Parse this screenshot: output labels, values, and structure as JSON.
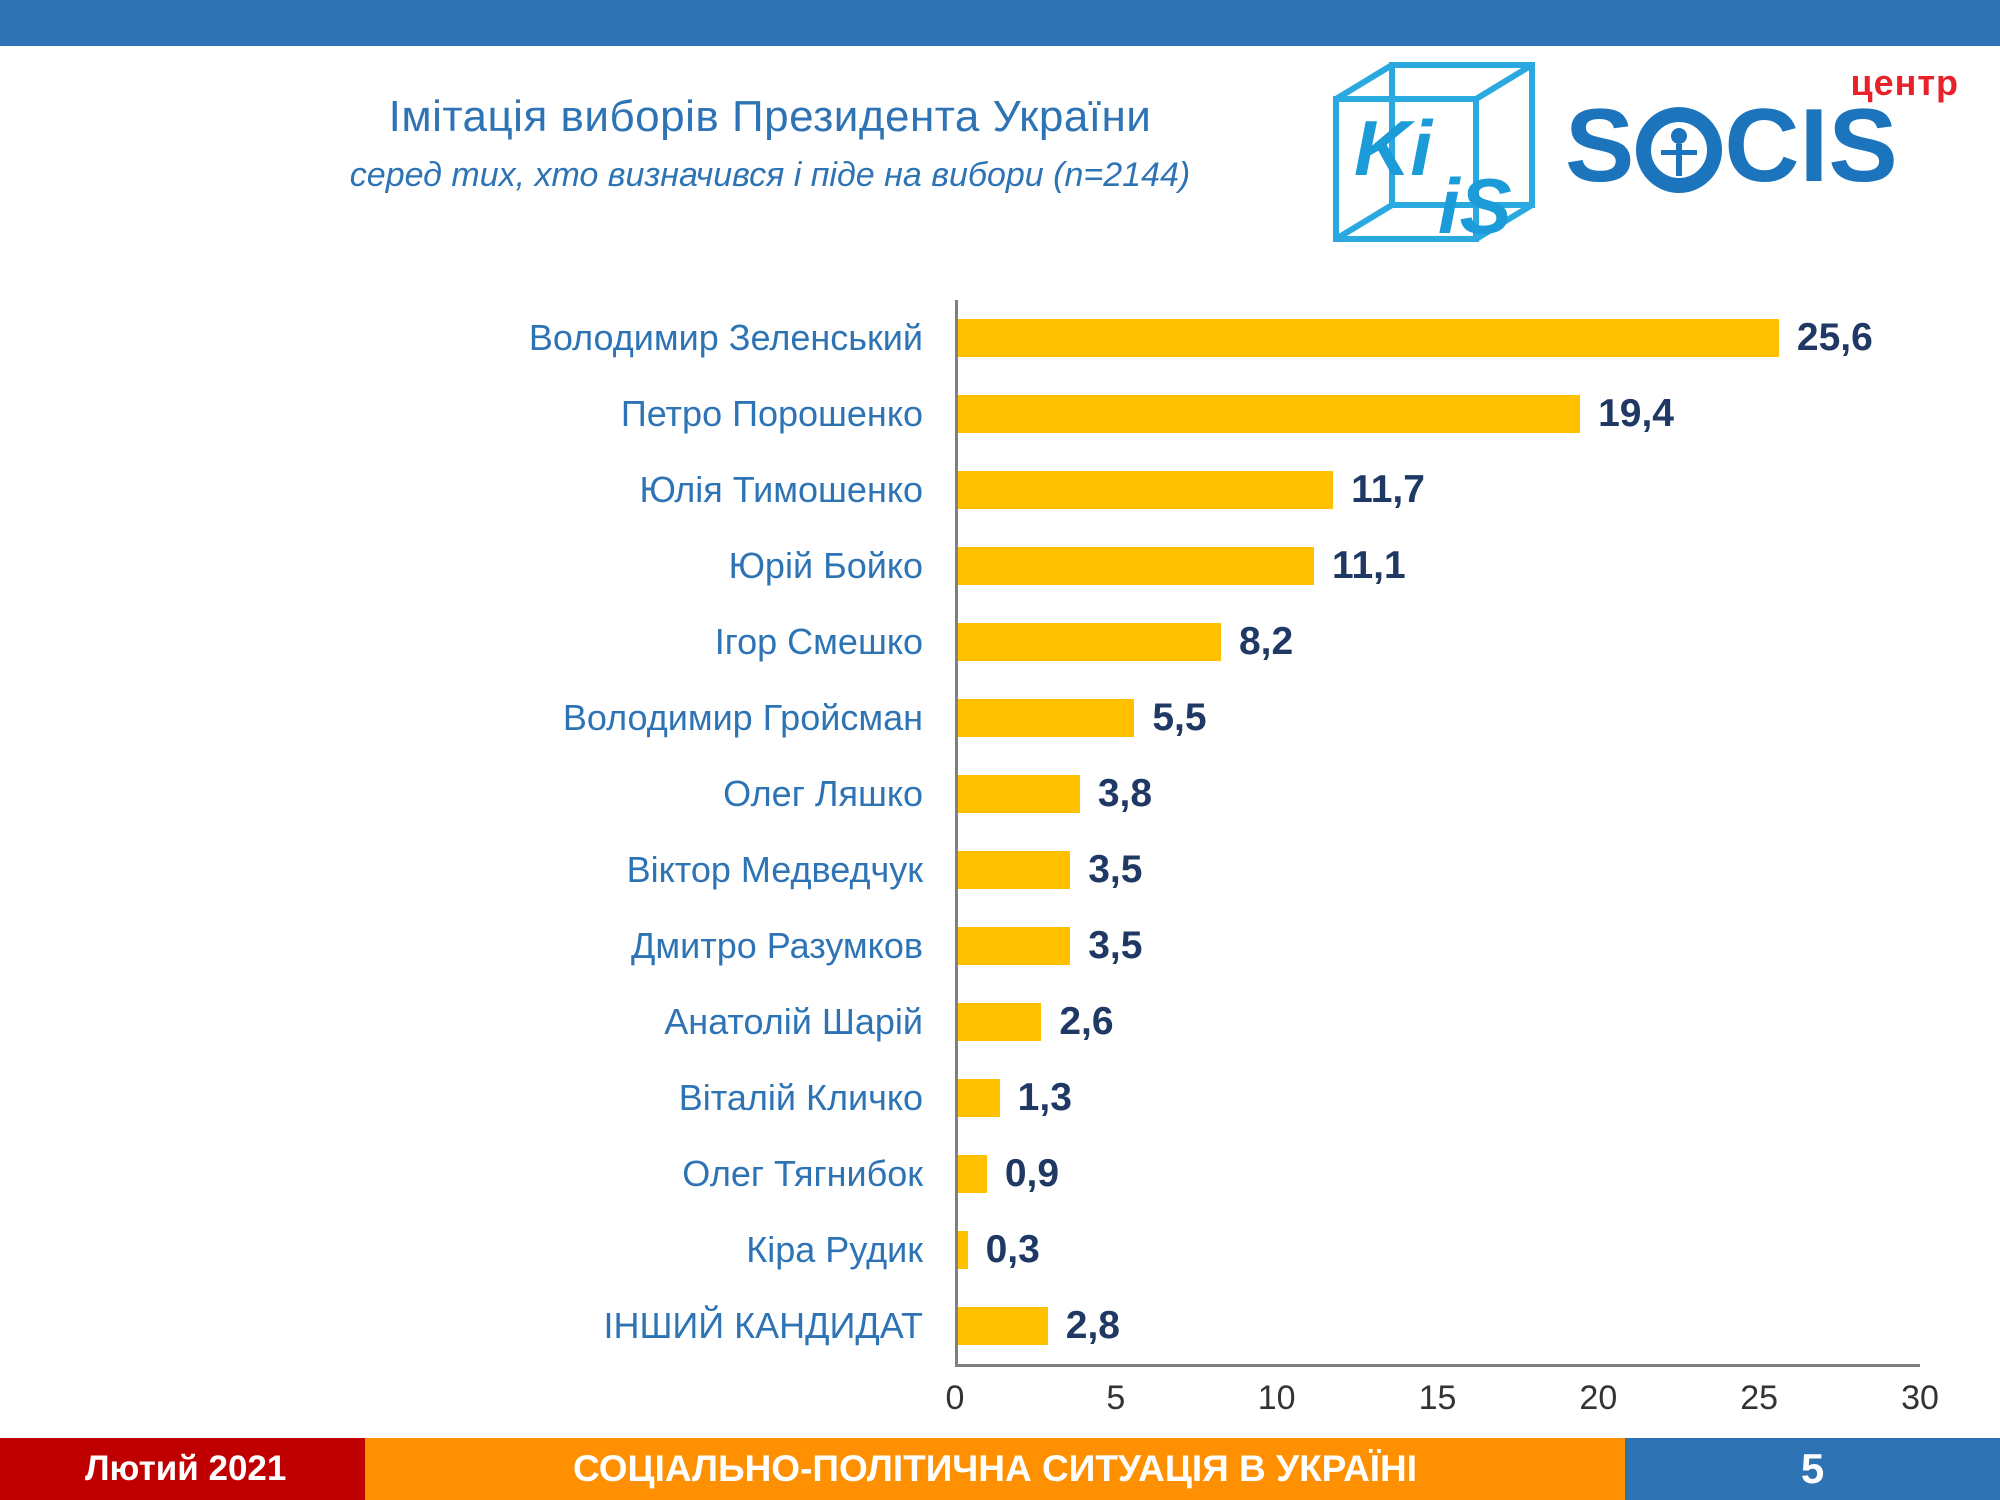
{
  "header": {
    "title": "Імітація виборів Президента України",
    "subtitle": "серед тих, хто визначився і піде на вибори (n=2144)"
  },
  "logos": {
    "kiis_top": "Ki",
    "kiis_bottom": "iS",
    "socis_part1": "S",
    "socis_part2": "CIS",
    "socis_center_label": "центр"
  },
  "footer": {
    "date": "Лютий 2021",
    "title": "СОЦІАЛЬНО-ПОЛІТИЧНА СИТУАЦІЯ В УКРАЇНІ",
    "page": "5"
  },
  "colors": {
    "bar": "#FFC000",
    "label_blue": "#2E74B5",
    "value_navy": "#1F3864",
    "footer_red": "#C00000",
    "footer_orange": "#FF9001",
    "top_bar_blue": "#2E74B5",
    "socis_blue": "#1C75BC",
    "kiis_cyan": "#29A9E0"
  },
  "chart_data": {
    "type": "bar",
    "orientation": "horizontal",
    "title": "Імітація виборів Президента України",
    "subtitle": "серед тих, хто визначився і піде на вибори (n=2144)",
    "categories": [
      "Володимир Зеленський",
      "Петро Порошенко",
      "Юлія Тимошенко",
      "Юрій Бойко",
      "Ігор Смешко",
      "Володимир Гройсман",
      "Олег Ляшко",
      "Віктор Медведчук",
      "Дмитро Разумков",
      "Анатолій Шарій",
      "Віталій Кличко",
      "Олег Тягнибок",
      "Кіра Рудик",
      "ІНШИЙ КАНДИДАТ"
    ],
    "values": [
      25.6,
      19.4,
      11.7,
      11.1,
      8.2,
      5.5,
      3.8,
      3.5,
      3.5,
      2.6,
      1.3,
      0.9,
      0.3,
      2.8
    ],
    "value_labels": [
      "25,6",
      "19,4",
      "11,7",
      "11,1",
      "8,2",
      "5,5",
      "3,8",
      "3,5",
      "3,5",
      "2,6",
      "1,3",
      "0,9",
      "0,3",
      "2,8"
    ],
    "xlim": [
      0,
      30
    ],
    "x_ticks": [
      0,
      5,
      10,
      15,
      20,
      25,
      30
    ],
    "xlabel": "",
    "ylabel": "",
    "grid": false,
    "legend": false
  }
}
